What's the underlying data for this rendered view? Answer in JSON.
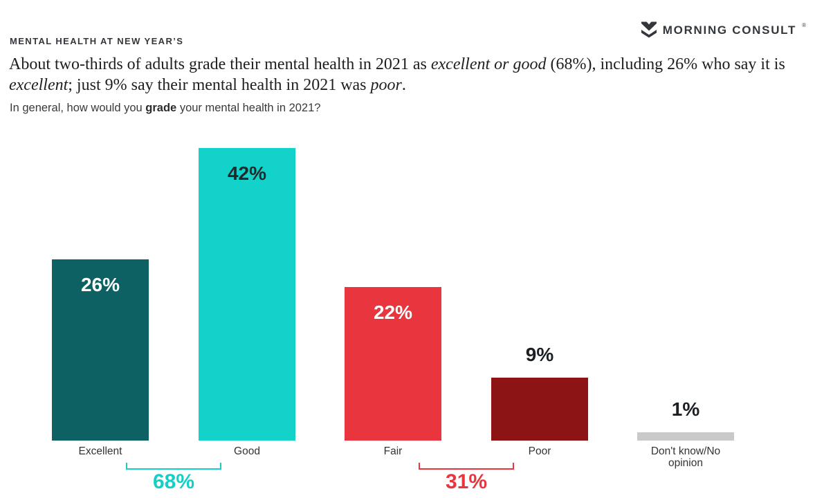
{
  "brand": {
    "logo_text": "MORNING CONSULT",
    "registered_mark": "®",
    "logo_color": "#33373b"
  },
  "kicker": "MENTAL HEALTH AT NEW YEAR’S",
  "title": {
    "segments": [
      {
        "text": "About two-thirds of adults grade their mental health in 2021 as ",
        "italic": false
      },
      {
        "text": "excellent or good",
        "italic": true
      },
      {
        "text": " (68%), including 26% who say it is ",
        "italic": false
      },
      {
        "text": "excellent",
        "italic": true
      },
      {
        "text": "; just 9% say their mental health in 2021 was ",
        "italic": false
      },
      {
        "text": "poor",
        "italic": true
      },
      {
        "text": ".",
        "italic": false
      }
    ]
  },
  "question": {
    "prefix": "In general, how would you ",
    "bold": "grade",
    "suffix": " your mental health in 2021?"
  },
  "chart_data": {
    "type": "bar",
    "title": "In general, how would you grade your mental health in 2021?",
    "categories": [
      "Excellent",
      "Good",
      "Fair",
      "Poor",
      "Don't know/No opinion"
    ],
    "values": [
      26,
      42,
      22,
      9,
      1
    ],
    "value_labels": [
      "26%",
      "42%",
      "22%",
      "9%",
      "1%"
    ],
    "bar_colors": [
      "#0e6163",
      "#12d2c9",
      "#e8353e",
      "#8c1414",
      "#c9c9c9"
    ],
    "label_inside": [
      true,
      true,
      true,
      false,
      false
    ],
    "label_colors": [
      "#ffffff",
      "#24282c",
      "#ffffff",
      "#1b1f23",
      "#1b1f23"
    ],
    "xlabel": "",
    "ylabel": "",
    "ylim": [
      0,
      45
    ],
    "grid": false,
    "legend": "none",
    "groups": [
      {
        "label": "68%",
        "color": "#13cfc6",
        "span": [
          "Excellent",
          "Good"
        ]
      },
      {
        "label": "31%",
        "color": "#e8353e",
        "span": [
          "Fair",
          "Poor"
        ]
      }
    ]
  }
}
